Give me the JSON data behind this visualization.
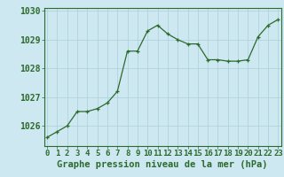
{
  "x": [
    0,
    1,
    2,
    3,
    4,
    5,
    6,
    7,
    8,
    9,
    10,
    11,
    12,
    13,
    14,
    15,
    16,
    17,
    18,
    19,
    20,
    21,
    22,
    23
  ],
  "y": [
    1025.6,
    1025.8,
    1026.0,
    1026.5,
    1026.5,
    1026.6,
    1026.8,
    1027.2,
    1028.6,
    1028.6,
    1029.3,
    1029.5,
    1029.2,
    1029.0,
    1028.85,
    1028.85,
    1028.3,
    1028.3,
    1028.25,
    1028.25,
    1028.3,
    1029.1,
    1029.5,
    1029.7
  ],
  "line_color": "#2d6a2d",
  "marker_color": "#2d6a2d",
  "bg_color": "#cde8f0",
  "grid_color": "#aacfdb",
  "axis_color": "#2d6a2d",
  "xlabel": "Graphe pression niveau de la mer (hPa)",
  "xlabel_color": "#2d6a2d",
  "tick_label_color": "#2d6a2d",
  "ylim": [
    1025.3,
    1030.1
  ],
  "yticks": [
    1026,
    1027,
    1028,
    1029,
    1030
  ],
  "xtick_labels": [
    "0",
    "1",
    "2",
    "3",
    "4",
    "5",
    "6",
    "7",
    "8",
    "9",
    "10",
    "11",
    "12",
    "13",
    "14",
    "15",
    "16",
    "17",
    "18",
    "19",
    "20",
    "21",
    "22",
    "23"
  ],
  "font_size_xlabel": 7.5,
  "font_size_tick": 6.5,
  "font_size_ytick": 7.0
}
